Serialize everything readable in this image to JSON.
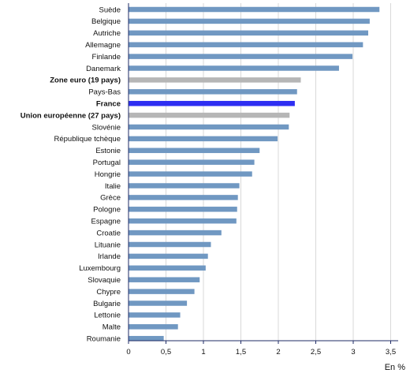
{
  "chart_data": {
    "type": "bar",
    "orientation": "horizontal",
    "categories": [
      "Suède",
      "Belgique",
      "Autriche",
      "Allemagne",
      "Finlande",
      "Danemark",
      "Zone euro (19 pays)",
      "Pays-Bas",
      "France",
      "Union européenne (27 pays)",
      "Slovénie",
      "République tchèque",
      "Estonie",
      "Portugal",
      "Hongrie",
      "Italie",
      "Grèce",
      "Pologne",
      "Espagne",
      "Croatie",
      "Lituanie",
      "Irlande",
      "Luxembourg",
      "Slovaquie",
      "Chypre",
      "Bulgarie",
      "Lettonie",
      "Malte",
      "Roumanie"
    ],
    "values": [
      3.35,
      3.22,
      3.2,
      3.13,
      2.99,
      2.81,
      2.3,
      2.25,
      2.22,
      2.15,
      2.14,
      1.99,
      1.75,
      1.68,
      1.65,
      1.48,
      1.46,
      1.45,
      1.44,
      1.24,
      1.1,
      1.06,
      1.03,
      0.95,
      0.88,
      0.78,
      0.69,
      0.66,
      0.47
    ],
    "bold_categories": [
      "Zone euro (19 pays)",
      "France",
      "Union européenne (27 pays)"
    ],
    "colors": {
      "default": "#7098c2",
      "aggregate": "#b6b6b6",
      "highlight": "#2e2ef2",
      "axis": "#1f2b66",
      "grid": "#d9d9d9"
    },
    "bar_color_keys": [
      "default",
      "default",
      "default",
      "default",
      "default",
      "default",
      "aggregate",
      "default",
      "highlight",
      "aggregate",
      "default",
      "default",
      "default",
      "default",
      "default",
      "default",
      "default",
      "default",
      "default",
      "default",
      "default",
      "default",
      "default",
      "default",
      "default",
      "default",
      "default",
      "default",
      "default"
    ],
    "xlim": [
      0,
      3.6
    ],
    "xticks": [
      0,
      0.5,
      1,
      1.5,
      2,
      2.5,
      3,
      3.5
    ],
    "xtick_labels": [
      "0",
      "0,5",
      "1",
      "1,5",
      "2",
      "2,5",
      "3",
      "3,5"
    ],
    "unit_label": "En %",
    "grid": true
  }
}
